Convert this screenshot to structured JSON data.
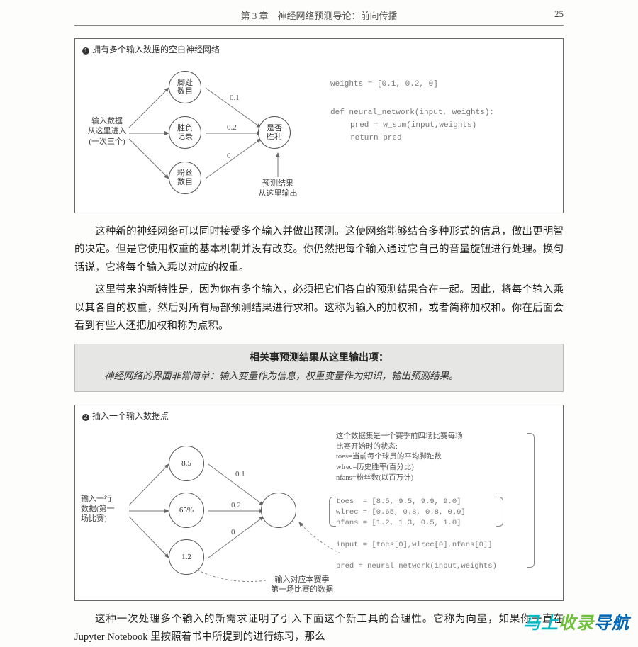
{
  "header": {
    "chapter": "第 3 章　神经网络预测导论：前向传播",
    "page_number": "25"
  },
  "figure1": {
    "caption_num": "1",
    "caption": "拥有多个输入数据的空白神经网络",
    "input_label": "输入数据\n从这里进入\n(一次三个)",
    "nodes": {
      "n1": "脚趾\n数目",
      "n2": "胜负\n记录",
      "n3": "粉丝\n数目",
      "out": "是否\n胜利"
    },
    "weights": {
      "w1": "0.1",
      "w2": "0.2",
      "w3": "0"
    },
    "output_label": "预测结果\n从这里输出",
    "code": {
      "l1": "weights = [0.1, 0.2, 0]",
      "l2": "def neural_network(input, weights):",
      "l3": "pred = w_sum(input,weights)",
      "l4": "return pred"
    }
  },
  "para1": "这种新的神经网络可以同时接受多个输入并做出预测。这使网络能够结合多种形式的信息，做出更明智的决定。但是它使用权重的基本机制并没有改变。你仍然把每个输入通过它自己的音量旋钮进行处理。换句话说，它将每个输入乘以对应的权重。",
  "para2": "这里带来的新特性是，因为你有多个输入，必须把它们各自的预测结果合在一起。因此，将每个输入乘以其各自的权重，然后对所有局部预测结果进行求和。这称为输入的加权和，或者简称加权和。你在后面会看到有些人还把加权和称为点积。",
  "callout": {
    "title": "相关事预测结果从这里输出项：",
    "body": "神经网络的界面非常简单：输入变量作为信息，权重变量作为知识，输出预测结果。"
  },
  "figure2": {
    "caption_num": "2",
    "caption": "插入一个输入数据点",
    "input_label": "输入一行\n数据(第一\n场比赛)",
    "nodes": {
      "n1": "8.5",
      "n2": "65%",
      "n3": "1.2"
    },
    "weights": {
      "w1": "0.1",
      "w2": "0.2",
      "w3": "0"
    },
    "desc": "这个数据集是一个赛季前四场比赛每场\n比赛开始时的状态:\ntoes=当前每个球员的平均脚趾数\nwlrec=历史胜率(百分比)\nnfans=粉丝数(以百万计)",
    "code": "toes  = [8.5, 9.5, 9.9, 9.0]\nwlrec = [0.65, 0.8, 0.8, 0.9]\nnfans = [1.2, 1.3, 0.5, 1.0]\n\ninput = [toes[0],wlrec[0],nfans[0]]\n\npred = neural_network(input,weights)",
    "note": "输入对应本赛季\n第一场比赛的数据"
  },
  "para3": "这种一次处理多个输入的新需求证明了引入下面这个新工具的合理性。它称为向量，如果你一直在 Jupyter Notebook 里按照着书中所提到的进行练习，那么",
  "watermark": {
    "text": "马上收录导航",
    "colors": [
      "#00b8c4",
      "#00b8c4",
      "#6fbf3a",
      "#6fbf3a",
      "#0066b3",
      "#0066b3"
    ]
  }
}
